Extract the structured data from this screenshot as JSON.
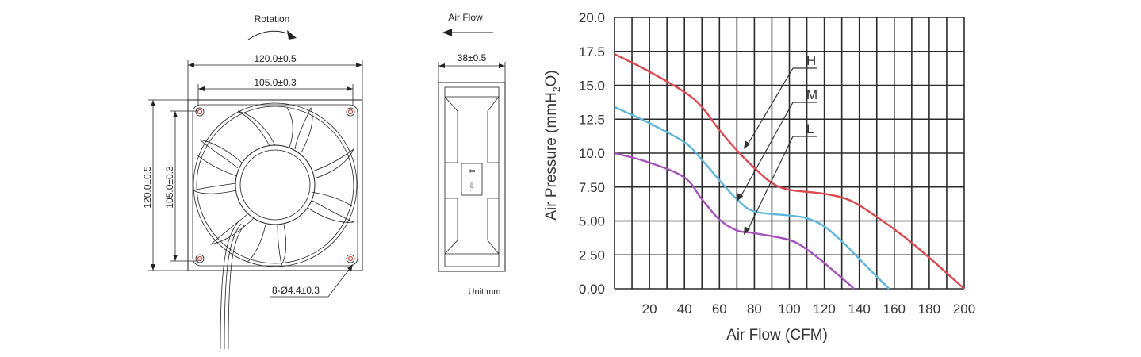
{
  "drawing": {
    "rotation_label": "Rotation",
    "airflow_label": "Air Flow",
    "width_outer": "120.0±0.5",
    "width_inner": "105.0±0.3",
    "height_outer": "120.0±0.5",
    "height_inner": "105.0±0.3",
    "depth": "38±0.5",
    "hole_spec": "8-Ø4.4±0.3",
    "unit": "Unit:mm"
  },
  "chart_data": {
    "type": "line",
    "title": "",
    "xlabel": "Air Flow (CFM)",
    "ylabel": "Air Pressure (mmH2O)",
    "ylabel_main": "Air Pressure (mmH",
    "ylabel_sub": "2",
    "ylabel_tail": "O)",
    "xlim": [
      0,
      200
    ],
    "ylim": [
      0,
      20
    ],
    "x_ticks": [
      20,
      40,
      60,
      80,
      100,
      120,
      140,
      160,
      180,
      200
    ],
    "x_tick_labels": [
      "20",
      "40",
      "60",
      "80",
      "100",
      "120",
      "140",
      "160",
      "180",
      "200"
    ],
    "y_ticks": [
      0,
      2.5,
      5,
      7.5,
      10,
      12.5,
      15,
      17.5,
      20
    ],
    "y_tick_labels": [
      "0.00",
      "2.50",
      "5.00",
      "7.50",
      "10.0",
      "12.5",
      "15.0",
      "17.5",
      "20.0"
    ],
    "grid": true,
    "series": [
      {
        "name": "H",
        "color": "#d9484f",
        "x": [
          0,
          20,
          40,
          50,
          60,
          70,
          80,
          90,
          100,
          120,
          135,
          150,
          165,
          180,
          200
        ],
        "y": [
          17.3,
          16.0,
          14.5,
          13.4,
          11.7,
          10.2,
          8.9,
          7.8,
          7.3,
          7.0,
          6.5,
          5.3,
          3.9,
          2.3,
          0.0
        ]
      },
      {
        "name": "M",
        "color": "#5eb5d9",
        "x": [
          0,
          20,
          40,
          50,
          60,
          70,
          80,
          100,
          110,
          120,
          130,
          140,
          150,
          157
        ],
        "y": [
          13.4,
          12.2,
          10.8,
          9.5,
          8.0,
          6.6,
          5.7,
          5.4,
          5.2,
          4.6,
          3.5,
          2.2,
          0.9,
          0.0
        ]
      },
      {
        "name": "L",
        "color": "#a552b8",
        "x": [
          0,
          20,
          40,
          50,
          60,
          70,
          80,
          100,
          110,
          120,
          130,
          137
        ],
        "y": [
          10.0,
          9.3,
          8.2,
          6.6,
          5.1,
          4.3,
          4.1,
          3.6,
          2.9,
          1.9,
          0.8,
          0.0
        ]
      }
    ]
  }
}
